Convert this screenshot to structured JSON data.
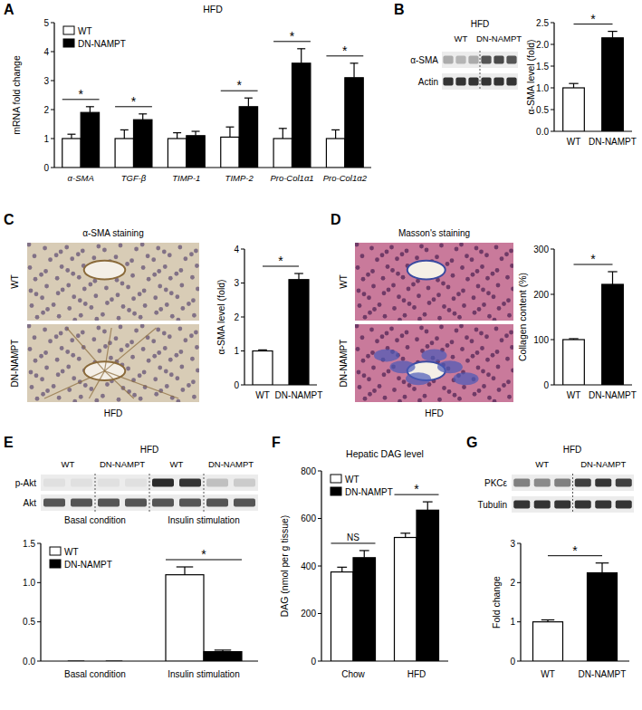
{
  "chart_data": [
    {
      "type": "bar",
      "panel_label": "A",
      "title": "HFD",
      "y_label": "mRNA fold change",
      "categories": [
        "α-SMA",
        "TGF-β",
        "TIMP-1",
        "TIMP-2",
        "Pro-Col1α1",
        "Pro-Col1α2"
      ],
      "series": [
        {
          "name": "WT",
          "color": "#ffffff",
          "values": [
            1.0,
            1.0,
            1.0,
            1.05,
            1.0,
            1.0
          ],
          "errors": [
            0.15,
            0.3,
            0.2,
            0.35,
            0.35,
            0.3
          ]
        },
        {
          "name": "DN-NAMPT",
          "color": "#000000",
          "values": [
            1.9,
            1.65,
            1.1,
            2.1,
            3.6,
            3.1
          ],
          "errors": [
            0.2,
            0.2,
            0.15,
            0.3,
            0.5,
            0.5
          ]
        }
      ],
      "significance": [
        "*",
        "*",
        null,
        "*",
        "*",
        "*"
      ],
      "ylim": [
        0,
        5
      ],
      "yticks": [
        0,
        1,
        2,
        3,
        4,
        5
      ],
      "legend": "top-left"
    },
    {
      "type": "bar",
      "panel_label": "B",
      "y_label": "α-SMA level (fold)",
      "blot": {
        "title": "HFD",
        "groups": [
          "WT",
          "DN-NAMPT"
        ],
        "rows": [
          "α-SMA",
          "Actin"
        ]
      },
      "categories": [
        "WT",
        "DN-NAMPT"
      ],
      "values": [
        1.0,
        2.15
      ],
      "errors": [
        0.1,
        0.15
      ],
      "colors": [
        "#ffffff",
        "#000000"
      ],
      "significance": "*",
      "ylim": [
        0,
        2.5
      ],
      "yticks": [
        {
          "value": 0,
          "label": "0.0"
        },
        {
          "value": 0.5,
          "label": "0.5"
        },
        {
          "value": 1,
          "label": "1.0"
        },
        {
          "value": 1.5,
          "label": "1.5"
        },
        {
          "value": 2,
          "label": "2.0"
        },
        {
          "value": 2.5,
          "label": "2.5"
        }
      ]
    },
    {
      "type": "bar",
      "panel_label": "C",
      "y_label": "α-SMA level (fold)",
      "micrograph": {
        "title": "α-SMA staining",
        "rows": [
          "WT",
          "DN-NAMPT"
        ],
        "caption": "HFD"
      },
      "categories": [
        "WT",
        "DN-NAMPT"
      ],
      "values": [
        1.0,
        3.1
      ],
      "errors": [
        0.03,
        0.18
      ],
      "colors": [
        "#ffffff",
        "#000000"
      ],
      "significance": "*",
      "ylim": [
        0,
        4
      ],
      "yticks": [
        0,
        1,
        2,
        3,
        4
      ]
    },
    {
      "type": "bar",
      "panel_label": "D",
      "y_label": "Collagen content (%)",
      "micrograph": {
        "title": "Masson's staining",
        "rows": [
          "WT",
          "DN-NAMPT"
        ],
        "caption": "HFD"
      },
      "categories": [
        "WT",
        "DN-NAMPT"
      ],
      "values": [
        100,
        222
      ],
      "errors": [
        2,
        28
      ],
      "colors": [
        "#ffffff",
        "#000000"
      ],
      "significance": "*",
      "ylim": [
        0,
        300
      ],
      "yticks": [
        0,
        100,
        200,
        300
      ]
    },
    {
      "type": "bar",
      "panel_label": "E",
      "blot": {
        "title": "HFD",
        "groups": [
          "WT",
          "DN-NAMPT",
          "WT",
          "DN-NAMPT"
        ],
        "rows": [
          "p-Akt",
          "Akt"
        ],
        "conditions": [
          "Basal condition",
          "Insulin stimulation"
        ]
      },
      "categories": [
        "Basal condition",
        "Insulin stimulation"
      ],
      "series": [
        {
          "name": "WT",
          "color": "#ffffff",
          "values": [
            0,
            1.1
          ],
          "errors": [
            0,
            0.1
          ]
        },
        {
          "name": "DN-NAMPT",
          "color": "#000000",
          "values": [
            0,
            0.12
          ],
          "errors": [
            0,
            0.02
          ]
        }
      ],
      "significance": [
        null,
        "*"
      ],
      "ylim": [
        0,
        1.5
      ],
      "yticks": [
        {
          "value": 0,
          "label": "0.0"
        },
        {
          "value": 0.5,
          "label": "0.5"
        },
        {
          "value": 1,
          "label": "1.0"
        },
        {
          "value": 1.5,
          "label": "1.5"
        }
      ],
      "legend": "top-left"
    },
    {
      "type": "bar",
      "panel_label": "F",
      "title": "Hepatic DAG level",
      "y_label": "DAG (nmol per g tissue)",
      "categories": [
        "Chow",
        "HFD"
      ],
      "series": [
        {
          "name": "WT",
          "color": "#ffffff",
          "values": [
            375,
            520
          ],
          "errors": [
            20,
            18
          ]
        },
        {
          "name": "DN-NAMPT",
          "color": "#000000",
          "values": [
            435,
            635
          ],
          "errors": [
            30,
            35
          ]
        }
      ],
      "significance": [
        "NS",
        "*"
      ],
      "ylim": [
        0,
        800
      ],
      "yticks": [
        0,
        200,
        400,
        600,
        800
      ],
      "legend": "top-left"
    },
    {
      "type": "bar",
      "panel_label": "G",
      "y_label": "Fold change",
      "blot": {
        "title": "HFD",
        "groups": [
          "WT",
          "DN-NAMPT"
        ],
        "rows": [
          "PKCε",
          "Tubulin"
        ]
      },
      "categories": [
        "WT",
        "DN-NAMPT"
      ],
      "values": [
        1.0,
        2.25
      ],
      "errors": [
        0.05,
        0.25
      ],
      "colors": [
        "#ffffff",
        "#000000"
      ],
      "significance": "*",
      "ylim": [
        0,
        3
      ],
      "yticks": [
        0,
        1,
        2,
        3
      ]
    }
  ]
}
